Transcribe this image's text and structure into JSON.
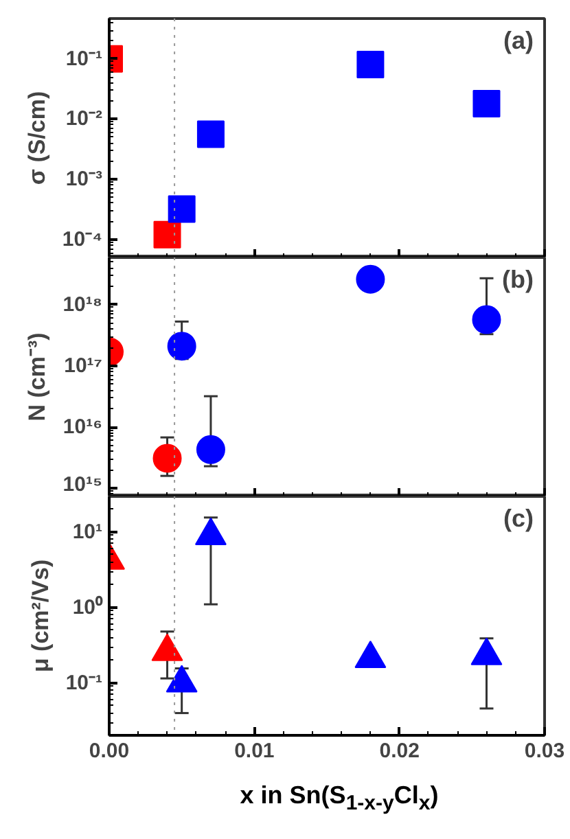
{
  "chart_data": [
    {
      "type": "scatter",
      "marker": "square",
      "log": "y",
      "grid": false,
      "tick_labels": "y",
      "ylabel": "σ (S/cm)",
      "annotations": [
        "(a)"
      ],
      "xlim": [
        0,
        0.03
      ],
      "xticks": [
        {
          "value": 0,
          "label": null
        },
        {
          "value": 0.01,
          "label": null
        },
        {
          "value": 0.02,
          "label": null
        },
        {
          "value": 0.03,
          "label": null
        }
      ],
      "ylim": [
        5e-05,
        0.47
      ],
      "yticks": [
        {
          "value": 0.0001,
          "label": "10⁻⁴"
        },
        {
          "value": 0.001,
          "label": "10⁻³"
        },
        {
          "value": 0.01,
          "label": "10⁻²"
        },
        {
          "value": 0.1,
          "label": "10⁻¹"
        }
      ],
      "ref_lines": [
        {
          "axis": "x",
          "value": 0.0045,
          "color": "#999999",
          "line_style": "dotted"
        }
      ],
      "series": [
        {
          "color": "#ff0000",
          "x": [
            0,
            0.004
          ],
          "values": [
            0.1,
            0.00012
          ]
        },
        {
          "color": "#0000ff",
          "x": [
            0.005,
            0.007,
            0.018,
            0.026
          ],
          "values": [
            0.00032,
            0.0056,
            0.081,
            0.018
          ]
        }
      ]
    },
    {
      "type": "scatter",
      "marker": "circle",
      "log": "y",
      "grid": false,
      "tick_labels": "y",
      "ylabel": "N (cm⁻³)",
      "annotations": [
        "(b)"
      ],
      "xlim": [
        0,
        0.03
      ],
      "xticks": [
        {
          "value": 0,
          "label": null
        },
        {
          "value": 0.01,
          "label": null
        },
        {
          "value": 0.02,
          "label": null
        },
        {
          "value": 0.03,
          "label": null
        }
      ],
      "ylim": [
        740000000000000.0,
        5.9e+18
      ],
      "yticks": [
        {
          "value": 1000000000000000.0,
          "label": "10¹⁵"
        },
        {
          "value": 1e+16,
          "label": "10¹⁶"
        },
        {
          "value": 1e+17,
          "label": "10¹⁷"
        },
        {
          "value": 1e+18,
          "label": "10¹⁸"
        }
      ],
      "ref_lines": [
        {
          "axis": "x",
          "value": 0.0045,
          "color": "#999999",
          "line_style": "dotted"
        }
      ],
      "series": [
        {
          "color": "#ff0000",
          "x": [
            0,
            0.004
          ],
          "values": [
            1.7e+17,
            3100000000000000.0
          ],
          "errors": [
            null,
            [
              1600000000000000.0,
              6800000000000000.0
            ]
          ]
        },
        {
          "color": "#0000ff",
          "x": [
            0.005,
            0.007,
            0.018,
            0.026
          ],
          "values": [
            2.1e+17,
            4300000000000000.0,
            2.6e+18,
            5.7e+17
          ],
          "errors": [
            [
              1.3e+17,
              5.3e+17
            ],
            [
              2300000000000000.0,
              3.2e+16
            ],
            null,
            [
              3.3e+17,
              2.7e+18
            ]
          ]
        }
      ]
    },
    {
      "type": "scatter",
      "marker": "triangle",
      "log": "y",
      "grid": false,
      "ylabel": "μ (cm²/Vs)",
      "xlabel": "x in Sn(S$_{1-x-y}$Cl$_{x}$)",
      "annotations": [
        "(c)"
      ],
      "xlim": [
        0,
        0.03
      ],
      "xticks": [
        {
          "value": 0,
          "label": "0.00"
        },
        0.01,
        0.02,
        0.03
      ],
      "ylim": [
        0.0203,
        29.5
      ],
      "yticks": [
        {
          "value": 0.1,
          "label": "10⁻¹"
        },
        {
          "value": 1,
          "label": "10⁰"
        },
        {
          "value": 10,
          "label": "10¹"
        }
      ],
      "ref_lines": [
        {
          "axis": "x",
          "value": 0.0045,
          "color": "#999999",
          "line_style": "dotted"
        }
      ],
      "series": [
        {
          "color": "#ff0000",
          "x": [
            0,
            0.004
          ],
          "values": [
            4.2,
            0.26
          ],
          "errors": [
            null,
            [
              0.115,
              0.48
            ]
          ]
        },
        {
          "color": "#0000ff",
          "x": [
            0.005,
            0.007,
            0.018,
            0.026
          ],
          "values": [
            0.1,
            8.9,
            0.21,
            0.23
          ],
          "errors": [
            [
              0.04,
              0.156
            ],
            [
              1.1,
              15.5
            ],
            null,
            [
              0.046,
              0.39
            ]
          ]
        }
      ]
    }
  ]
}
